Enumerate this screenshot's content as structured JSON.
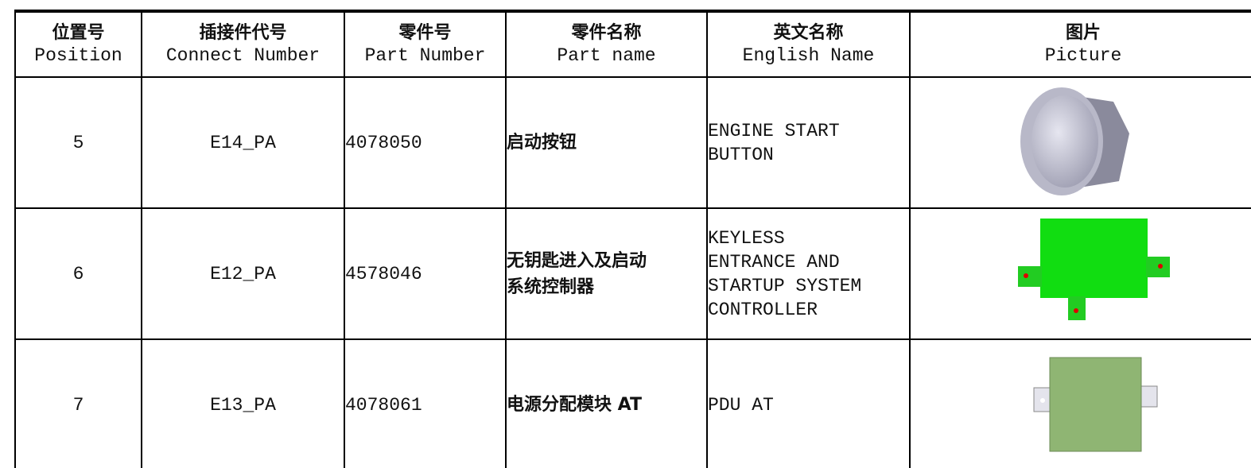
{
  "table": {
    "headers": [
      {
        "zh": "位置号",
        "en": "Position"
      },
      {
        "zh": "插接件代号",
        "en": "Connect Number"
      },
      {
        "zh": "零件号",
        "en": "Part Number"
      },
      {
        "zh": "零件名称",
        "en": "Part name"
      },
      {
        "zh": "英文名称",
        "en": "English Name"
      },
      {
        "zh": "图片",
        "en": "Picture"
      }
    ],
    "rows": [
      {
        "position": "5",
        "connect": "E14_PA",
        "part": "4078050",
        "name": [
          "启动按钮"
        ],
        "english": [
          "ENGINE START",
          "BUTTON"
        ]
      },
      {
        "position": "6",
        "connect": "E12_PA",
        "part": "4578046",
        "name": [
          "无钥匙进入及启动",
          "系统控制器"
        ],
        "english": [
          "KEYLESS",
          "ENTRANCE AND",
          "STARTUP SYSTEM",
          "CONTROLLER"
        ]
      },
      {
        "position": "7",
        "connect": "E13_PA",
        "part": "4078061",
        "name": [
          "电源分配模块 AT"
        ],
        "english": [
          "PDU AT"
        ]
      }
    ]
  }
}
